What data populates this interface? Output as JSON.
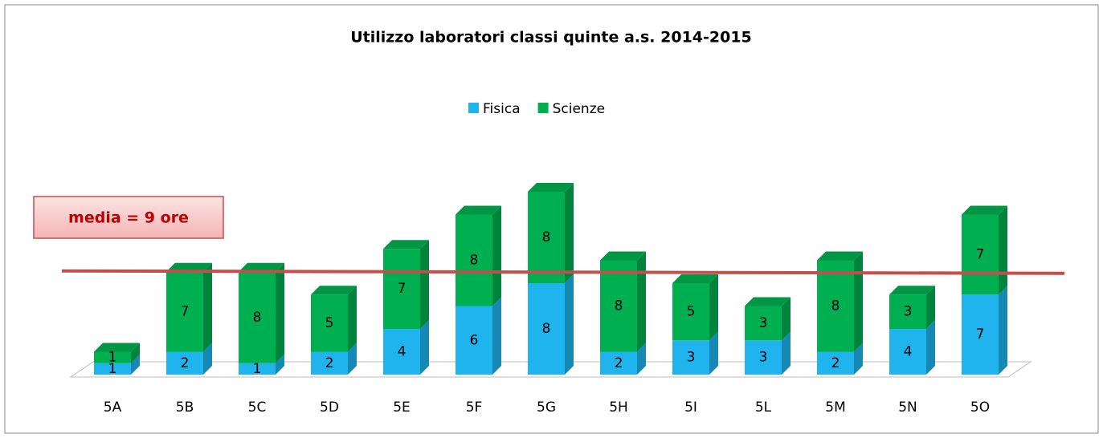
{
  "chart_data": {
    "type": "bar3d_stacked",
    "title": "Utilizzo laboratori classi quinte a.s. 2014-2015",
    "categories": [
      "5A",
      "5B",
      "5C",
      "5D",
      "5E",
      "5F",
      "5G",
      "5H",
      "5I",
      "5L",
      "5M",
      "5N",
      "5O"
    ],
    "series": [
      {
        "name": "Fisica",
        "color": "#1fb4ee",
        "values": [
          1,
          2,
          1,
          2,
          4,
          6,
          8,
          2,
          3,
          3,
          2,
          4,
          7
        ]
      },
      {
        "name": "Scienze",
        "color": "#00b050",
        "values": [
          1,
          7,
          8,
          5,
          7,
          8,
          8,
          8,
          5,
          3,
          8,
          3,
          7
        ]
      }
    ],
    "mean": 9,
    "annotation": "media = 9 ore",
    "mean_color": "#c0504d",
    "legend": "top"
  }
}
